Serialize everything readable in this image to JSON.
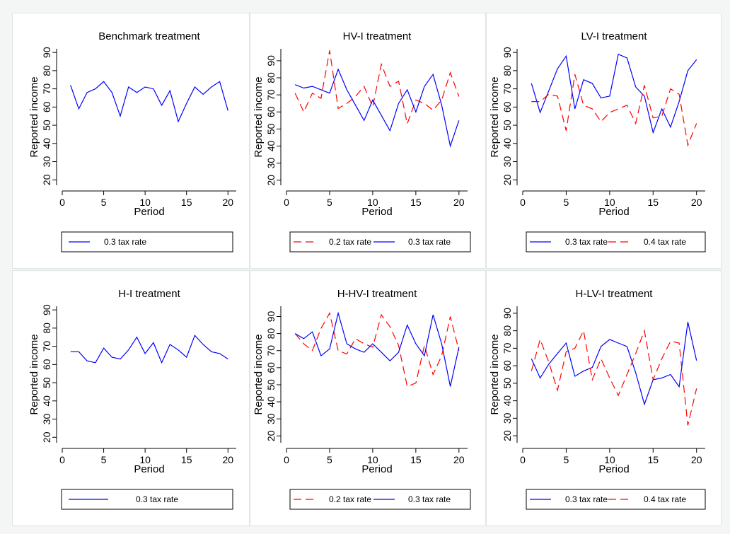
{
  "colors": {
    "blue": "#0000ff",
    "red": "#ff0000",
    "axis": "#000000",
    "panel_bg": "#ffffff"
  },
  "chart_data": [
    {
      "type": "line",
      "title": "Benchmark treatment",
      "xlabel": "Period",
      "ylabel": "Reported income",
      "xlim": [
        0,
        21
      ],
      "ylim": [
        17,
        92
      ],
      "xticks": [
        "0",
        "5",
        "10",
        "15",
        "20"
      ],
      "yticks": [
        "20",
        "30",
        "40",
        "50",
        "60",
        "70",
        "80",
        "90"
      ],
      "grid": false,
      "legend_position": "bottom",
      "x": [
        1,
        2,
        3,
        4,
        5,
        6,
        7,
        8,
        9,
        10,
        11,
        12,
        13,
        14,
        15,
        16,
        17,
        18,
        19,
        20
      ],
      "series": [
        {
          "name": "0.3 tax rate",
          "color": "#0000ff",
          "dash": "solid",
          "values": [
            72,
            59,
            68,
            70,
            74,
            68,
            55,
            71,
            68,
            71,
            70,
            61,
            69,
            52,
            62,
            71,
            67,
            71,
            74,
            58
          ]
        }
      ]
    },
    {
      "type": "line",
      "title": "HV-I treatment",
      "xlabel": "Period",
      "ylabel": "Reported income",
      "xlim": [
        0,
        21
      ],
      "ylim": [
        17,
        97
      ],
      "xticks": [
        "0",
        "5",
        "10",
        "15",
        "20"
      ],
      "yticks": [
        "20",
        "30",
        "40",
        "50",
        "60",
        "70",
        "80",
        "90"
      ],
      "grid": false,
      "legend_position": "bottom",
      "x": [
        1,
        2,
        3,
        4,
        5,
        6,
        7,
        8,
        9,
        10,
        11,
        12,
        13,
        14,
        15,
        16,
        17,
        18,
        19,
        20
      ],
      "series": [
        {
          "name": "0.2 tax rate",
          "color": "#ff0000",
          "dash": "dashed",
          "values": [
            71,
            60,
            71,
            68,
            96,
            62,
            65,
            69,
            75,
            63,
            88,
            75,
            78,
            53,
            67,
            65,
            61,
            67,
            83,
            69
          ]
        },
        {
          "name": "0.3 tax rate",
          "color": "#0000ff",
          "dash": "solid",
          "values": [
            76,
            74,
            75,
            73,
            71,
            85,
            73,
            64,
            55,
            67,
            58,
            49,
            65,
            73,
            60,
            75,
            82,
            64,
            40,
            55
          ]
        }
      ]
    },
    {
      "type": "line",
      "title": "LV-I treatment",
      "xlabel": "Period",
      "ylabel": "Reported income",
      "xlim": [
        0,
        21
      ],
      "ylim": [
        17,
        92
      ],
      "xticks": [
        "0",
        "5",
        "10",
        "15",
        "20"
      ],
      "yticks": [
        "20",
        "30",
        "40",
        "50",
        "60",
        "70",
        "80",
        "90"
      ],
      "grid": false,
      "legend_position": "bottom",
      "x": [
        1,
        2,
        3,
        4,
        5,
        6,
        7,
        8,
        9,
        10,
        11,
        12,
        13,
        14,
        15,
        16,
        17,
        18,
        19,
        20
      ],
      "series": [
        {
          "name": "0.3 tax rate",
          "color": "#0000ff",
          "dash": "solid",
          "values": [
            73,
            57,
            69,
            81,
            88,
            59,
            75,
            73,
            65,
            66,
            89,
            87,
            71,
            66,
            46,
            59,
            49,
            63,
            80,
            86
          ]
        },
        {
          "name": "0.4 tax rate",
          "color": "#ff0000",
          "dash": "dashed",
          "values": [
            63,
            63,
            67,
            66,
            47,
            78,
            61,
            59,
            52,
            57,
            59,
            61,
            51,
            72,
            54,
            55,
            70,
            67,
            39,
            51
          ]
        }
      ]
    },
    {
      "type": "line",
      "title": "H-I treatment",
      "xlabel": "Period",
      "ylabel": "Reported income",
      "xlim": [
        0,
        21
      ],
      "ylim": [
        17,
        92
      ],
      "xticks": [
        "0",
        "5",
        "10",
        "15",
        "20"
      ],
      "yticks": [
        "20",
        "30",
        "40",
        "50",
        "60",
        "70",
        "80",
        "90"
      ],
      "grid": false,
      "legend_position": "bottom",
      "x": [
        1,
        2,
        3,
        4,
        5,
        6,
        7,
        8,
        9,
        10,
        11,
        12,
        13,
        14,
        15,
        16,
        17,
        18,
        19,
        20
      ],
      "series": [
        {
          "name": "0.3 tax rate",
          "color": "#0000ff",
          "dash": "solid",
          "values": [
            67,
            67,
            62,
            61,
            69,
            64,
            63,
            68,
            75,
            66,
            72,
            61,
            71,
            68,
            64,
            76,
            71,
            67,
            66,
            63
          ]
        }
      ]
    },
    {
      "type": "line",
      "title": "H-HV-I treatment",
      "xlabel": "Period",
      "ylabel": "Reported income",
      "xlim": [
        0,
        21
      ],
      "ylim": [
        16,
        96
      ],
      "xticks": [
        "0",
        "5",
        "10",
        "15",
        "20"
      ],
      "yticks": [
        "20",
        "30",
        "40",
        "50",
        "60",
        "70",
        "80",
        "90"
      ],
      "grid": false,
      "legend_position": "bottom",
      "x": [
        1,
        2,
        3,
        4,
        5,
        6,
        7,
        8,
        9,
        10,
        11,
        12,
        13,
        14,
        15,
        16,
        17,
        18,
        19,
        20
      ],
      "series": [
        {
          "name": "0.2 tax rate",
          "color": "#ff0000",
          "dash": "dashed",
          "values": [
            80,
            74,
            70,
            83,
            92,
            70,
            68,
            77,
            74,
            72,
            91,
            84,
            73,
            49,
            51,
            73,
            56,
            67,
            90,
            70
          ]
        },
        {
          "name": "0.3 tax rate",
          "color": "#0000ff",
          "dash": "solid",
          "values": [
            80,
            77,
            81,
            67,
            71,
            92,
            74,
            71,
            69,
            74,
            69,
            64,
            69,
            85,
            74,
            67,
            91,
            74,
            49,
            72
          ]
        }
      ]
    },
    {
      "type": "line",
      "title": "H-LV-I treatment",
      "xlabel": "Period",
      "ylabel": "Reported income",
      "xlim": [
        0,
        21
      ],
      "ylim": [
        16,
        94
      ],
      "xticks": [
        "0",
        "5",
        "10",
        "15",
        "20"
      ],
      "yticks": [
        "20",
        "30",
        "40",
        "50",
        "60",
        "70",
        "80",
        "90"
      ],
      "grid": false,
      "legend_position": "bottom",
      "x": [
        1,
        2,
        3,
        4,
        5,
        6,
        7,
        8,
        9,
        10,
        11,
        12,
        13,
        14,
        15,
        16,
        17,
        18,
        19,
        20
      ],
      "series": [
        {
          "name": "0.3 tax rate",
          "color": "#0000ff",
          "dash": "solid",
          "values": [
            64,
            53,
            61,
            67,
            73,
            54,
            57,
            59,
            71,
            75,
            73,
            71,
            56,
            38,
            52,
            53,
            55,
            48,
            85,
            63
          ]
        },
        {
          "name": "0.4 tax rate",
          "color": "#ff0000",
          "dash": "dashed",
          "values": [
            57,
            75,
            62,
            46,
            68,
            70,
            80,
            52,
            64,
            53,
            43,
            55,
            67,
            80,
            52,
            64,
            74,
            73,
            26,
            47
          ]
        }
      ]
    }
  ]
}
